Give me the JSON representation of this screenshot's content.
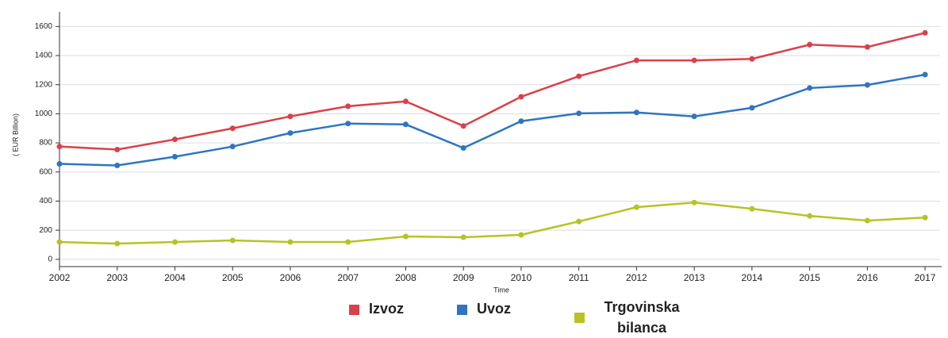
{
  "chart_data": {
    "type": "line",
    "y_label": "( EUR Billion)",
    "x_label": "Time",
    "x": [
      2002,
      2003,
      2004,
      2005,
      2006,
      2007,
      2008,
      2009,
      2010,
      2011,
      2012,
      2013,
      2014,
      2015,
      2016,
      2017
    ],
    "series": [
      {
        "name": "Izvoz",
        "color": "#d9414a",
        "values": [
          775,
          754,
          824,
          900,
          982,
          1052,
          1085,
          916,
          1117,
          1258,
          1367,
          1367,
          1377,
          1475,
          1459,
          1556
        ]
      },
      {
        "name": "Uvoz",
        "color": "#2f75c0",
        "values": [
          656,
          645,
          705,
          775,
          868,
          933,
          927,
          765,
          949,
          1003,
          1009,
          982,
          1041,
          1177,
          1198,
          1269
        ]
      },
      {
        "name": "Trgovinska bilanca",
        "color": "#b5c424",
        "values": [
          119,
          108,
          119,
          130,
          119,
          119,
          157,
          152,
          168,
          260,
          358,
          390,
          347,
          298,
          266,
          287
        ]
      }
    ],
    "xlim": [
      2002,
      2017.15
    ],
    "xticks": [
      2002,
      2003,
      2004,
      2005,
      2006,
      2007,
      2008,
      2009,
      2010,
      2011,
      2012,
      2013,
      2014,
      2015,
      2016,
      2017
    ],
    "ylim": [
      -50,
      1700
    ],
    "yticks": [
      0,
      200,
      400,
      600,
      800,
      1000,
      1200,
      1400,
      1600
    ],
    "grid": true
  }
}
